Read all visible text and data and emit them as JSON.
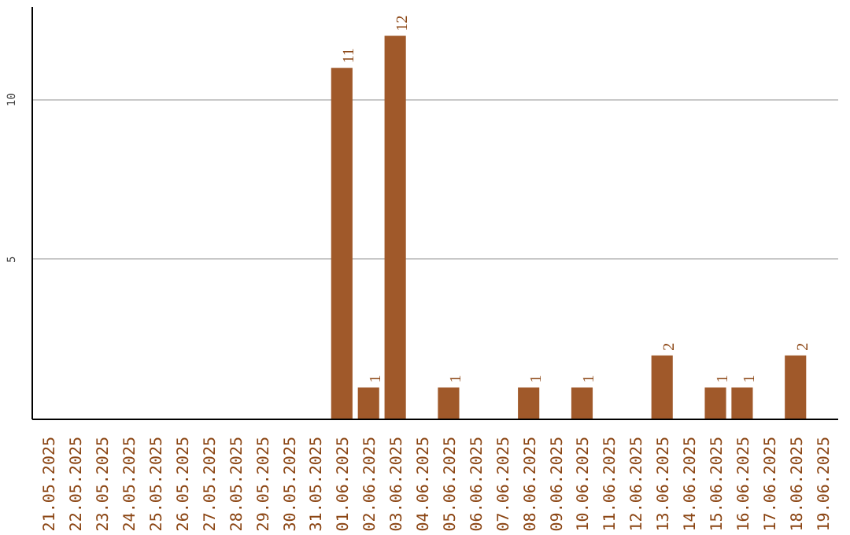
{
  "chart_data": {
    "type": "bar",
    "categories": [
      "21.05.2025",
      "22.05.2025",
      "23.05.2025",
      "24.05.2025",
      "25.05.2025",
      "26.05.2025",
      "27.05.2025",
      "28.05.2025",
      "29.05.2025",
      "30.05.2025",
      "31.05.2025",
      "01.06.2025",
      "02.06.2025",
      "03.06.2025",
      "04.06.2025",
      "05.06.2025",
      "06.06.2025",
      "07.06.2025",
      "08.06.2025",
      "09.06.2025",
      "10.06.2025",
      "11.06.2025",
      "12.06.2025",
      "13.06.2025",
      "14.06.2025",
      "15.06.2025",
      "16.06.2025",
      "17.06.2025",
      "18.06.2025",
      "19.06.2025"
    ],
    "values": [
      0,
      0,
      0,
      0,
      0,
      0,
      0,
      0,
      0,
      0,
      0,
      11,
      1,
      12,
      0,
      1,
      0,
      0,
      1,
      0,
      1,
      0,
      0,
      2,
      0,
      1,
      1,
      0,
      2,
      0
    ],
    "value_labels": [
      null,
      null,
      null,
      null,
      null,
      null,
      null,
      null,
      null,
      null,
      null,
      "11",
      "1",
      "12",
      null,
      "1",
      null,
      null,
      "1",
      null,
      "1",
      null,
      null,
      "2",
      null,
      "1",
      "1",
      null,
      "2",
      null
    ],
    "color": "#a0592a",
    "ylim": [
      0,
      12.9
    ],
    "yticks": [
      5,
      10
    ],
    "grid": "y"
  }
}
